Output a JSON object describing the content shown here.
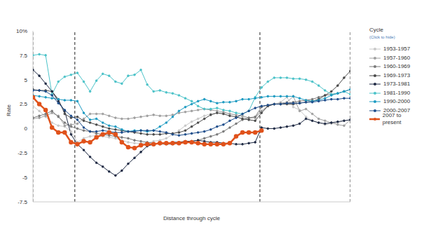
{
  "chart_data": {
    "type": "line",
    "x_label": "Distance through cycle",
    "y_label": "Rate",
    "legend_title": "Cycle",
    "legend_note": "(Click to hide)",
    "legend": "right",
    "grid": true,
    "tick_labels": "y",
    "xlim": [
      0,
      100
    ],
    "xticks": [
      0,
      13.2,
      71.5,
      100
    ],
    "ylim": [
      -7.5,
      10
    ],
    "yticks": [
      {
        "value": 10,
        "label": "10%"
      },
      7.5,
      5,
      2.5,
      0,
      -2.5,
      -5,
      -7.5
    ],
    "x": [
      0,
      2,
      4,
      6,
      8,
      10,
      12,
      14,
      16,
      18,
      20,
      22,
      24,
      26,
      28,
      30,
      32,
      34,
      36,
      38,
      40,
      42,
      44,
      46,
      48,
      50,
      52,
      54,
      56,
      58,
      60,
      62,
      64,
      66,
      68,
      70,
      72,
      74,
      76,
      78,
      80,
      82,
      84,
      86,
      88,
      90,
      92,
      94,
      96,
      98,
      100
    ],
    "series": [
      {
        "name": "1953-1957",
        "color": "#c8c8c8",
        "marker": "circle",
        "line_style": "solid",
        "values": [
          2.3,
          1.8,
          1.2,
          0.6,
          0.3,
          0.2,
          -0.3,
          -1.4,
          -1.0,
          -0.8,
          -0.7,
          -0.8,
          -0.9,
          -1.0,
          -1.2,
          -1.4,
          -1.5,
          -1.5,
          -1.5,
          -1.3,
          -1.2,
          -1.0,
          -0.6,
          -0.2,
          0.3,
          0.7,
          1.0,
          1.3,
          1.5,
          1.6,
          1.6,
          1.5,
          1.4,
          1.2,
          1.0,
          1.2,
          1.8,
          2.3,
          2.5,
          2.7,
          3.2,
          2.2,
          1.9,
          1.2,
          0.8,
          0.6,
          0.4,
          0.5,
          0.6,
          0.8,
          0.9
        ]
      },
      {
        "name": "1957-1960",
        "color": "#a0a0a0",
        "marker": "circle",
        "line_style": "solid",
        "values": [
          1.0,
          1.1,
          1.3,
          1.6,
          1.3,
          0.3,
          0.4,
          0.5,
          1.0,
          1.5,
          1.5,
          1.5,
          1.3,
          1.1,
          1.0,
          1.0,
          1.1,
          1.2,
          1.3,
          1.4,
          1.3,
          1.3,
          1.4,
          1.6,
          1.7,
          1.8,
          1.9,
          2.0,
          1.9,
          1.8,
          1.7,
          1.5,
          1.4,
          1.3,
          1.1,
          1.1,
          1.8,
          2.3,
          2.5,
          2.6,
          2.7,
          3.3,
          1.8,
          2.0,
          1.5,
          1.0,
          0.8,
          0.6,
          0.4,
          0.3,
          0.9
        ]
      },
      {
        "name": "1960-1969",
        "color": "#7a7a7a",
        "marker": "circle",
        "line_style": "solid",
        "values": [
          1.1,
          1.3,
          1.5,
          1.8,
          1.2,
          0.6,
          0.2,
          0.0,
          -0.2,
          -0.3,
          -0.5,
          -0.6,
          -0.7,
          -0.8,
          -0.9,
          -1.0,
          -1.2,
          -1.3,
          -1.4,
          -1.5,
          -1.6,
          -1.6,
          -1.6,
          -1.5,
          -1.4,
          -1.3,
          -1.2,
          -1.0,
          -0.8,
          -0.6,
          -0.3,
          0.1,
          0.5,
          0.9,
          1.1,
          1.2,
          2.2,
          2.4,
          2.5,
          2.5,
          2.6,
          2.7,
          2.8,
          2.9,
          3.0,
          3.2,
          3.4,
          3.5,
          3.6,
          3.8,
          4.0
        ]
      },
      {
        "name": "1969-1973",
        "color": "#4a4a4a",
        "marker": "circle",
        "line_style": "solid",
        "values": [
          4.0,
          3.9,
          3.9,
          3.8,
          3.0,
          1.5,
          1.1,
          1.2,
          0.8,
          0.6,
          0.4,
          0.2,
          0.0,
          -0.1,
          -0.2,
          -0.3,
          -0.4,
          -0.5,
          -0.6,
          -0.6,
          -0.6,
          -0.5,
          -0.5,
          -0.4,
          -0.2,
          0.2,
          0.6,
          1.0,
          1.4,
          1.6,
          1.5,
          1.3,
          1.2,
          1.0,
          0.9,
          0.8,
          1.6,
          2.3,
          2.5,
          2.5,
          2.5,
          2.5,
          2.6,
          2.7,
          2.8,
          3.0,
          3.4,
          3.8,
          4.4,
          5.2,
          5.9
        ]
      },
      {
        "name": "1973-1981",
        "color": "#1f2a44",
        "marker": "circle",
        "line_style": "solid",
        "values": [
          6.0,
          5.4,
          4.6,
          3.8,
          2.8,
          1.8,
          -0.6,
          -1.6,
          -2.2,
          -2.9,
          -3.5,
          -3.9,
          -4.4,
          -4.8,
          -4.3,
          -3.6,
          -3.0,
          -2.4,
          -1.8,
          -1.6,
          -1.5,
          -1.5,
          -1.4,
          -1.4,
          -1.3,
          -1.3,
          -1.2,
          -1.3,
          -1.4,
          -1.4,
          -1.5,
          -1.5,
          -1.6,
          -1.6,
          -1.5,
          -1.4,
          0.1,
          0.0,
          0.0,
          0.1,
          0.2,
          0.3,
          0.5,
          1.0,
          0.8,
          0.6,
          0.5,
          0.6,
          0.7,
          0.8,
          0.9
        ]
      },
      {
        "name": "1981-1990",
        "color": "#4cc3c9",
        "marker": "circle",
        "line_style": "solid",
        "values": [
          7.5,
          7.6,
          7.5,
          3.5,
          4.8,
          5.3,
          5.5,
          5.7,
          4.8,
          3.8,
          4.9,
          5.6,
          5.4,
          4.8,
          4.6,
          5.4,
          5.5,
          6.0,
          4.5,
          3.8,
          3.9,
          3.7,
          3.6,
          3.4,
          3.1,
          2.8,
          2.3,
          2.0,
          2.0,
          2.1,
          1.9,
          1.8,
          1.6,
          1.5,
          1.8,
          3.2,
          4.2,
          4.8,
          5.2,
          5.2,
          5.2,
          5.1,
          5.1,
          5.0,
          4.8,
          4.4,
          3.9,
          3.5,
          3.6,
          3.8,
          3.5
        ]
      },
      {
        "name": "1990-2000",
        "color": "#1d9bc2",
        "marker": "circle",
        "line_style": "solid",
        "values": [
          3.4,
          3.3,
          3.2,
          3.1,
          3.0,
          2.9,
          2.9,
          2.8,
          1.6,
          0.9,
          1.0,
          0.6,
          0.3,
          0.2,
          -0.1,
          -0.3,
          -0.2,
          -0.2,
          -0.3,
          -0.2,
          0.2,
          0.6,
          1.2,
          1.8,
          2.2,
          2.5,
          2.8,
          3.0,
          2.8,
          2.6,
          2.7,
          2.7,
          2.8,
          3.0,
          3.0,
          3.1,
          3.2,
          3.3,
          3.3,
          3.3,
          3.3,
          3.3,
          3.1,
          2.9,
          2.8,
          2.9,
          3.1,
          3.4,
          3.6,
          3.8,
          4.0
        ]
      },
      {
        "name": "2000-2007",
        "color": "#1f4e8c",
        "marker": "circle",
        "line_style": "solid",
        "values": [
          3.9,
          3.9,
          3.8,
          3.4,
          2.6,
          1.9,
          1.3,
          0.9,
          0.1,
          -0.3,
          -0.3,
          -0.2,
          -0.3,
          -0.4,
          -0.4,
          -0.3,
          -0.3,
          -0.2,
          -0.2,
          -0.2,
          -0.3,
          -0.4,
          -0.6,
          -0.7,
          -0.6,
          -0.5,
          -0.4,
          -0.3,
          -0.1,
          0.2,
          0.4,
          0.8,
          1.1,
          1.5,
          1.8,
          2.1,
          2.3,
          2.4,
          2.5,
          2.5,
          2.6,
          2.6,
          2.6,
          2.7,
          2.7,
          2.8,
          2.9,
          3.0,
          3.0,
          3.1,
          3.1
        ]
      },
      {
        "name": "2007 to present",
        "color": "#e0521b",
        "marker": "circle",
        "line_style": "solid",
        "values": [
          3.2,
          2.5,
          1.9,
          0.1,
          -0.4,
          -0.4,
          -1.4,
          -1.6,
          -1.3,
          -1.4,
          -0.9,
          -0.6,
          -0.4,
          -0.6,
          -1.4,
          -1.9,
          -2.0,
          -1.7,
          -1.6,
          -1.6,
          -1.5,
          -1.5,
          -1.5,
          -1.5,
          -1.4,
          -1.4,
          -1.5,
          -1.6,
          -1.6,
          -1.6,
          -1.6,
          -1.5,
          -0.8,
          -0.4,
          -0.4,
          -0.4,
          -0.2,
          null,
          null,
          null,
          null,
          null,
          null,
          null,
          null,
          null,
          null,
          null,
          null,
          null,
          null
        ]
      }
    ]
  }
}
